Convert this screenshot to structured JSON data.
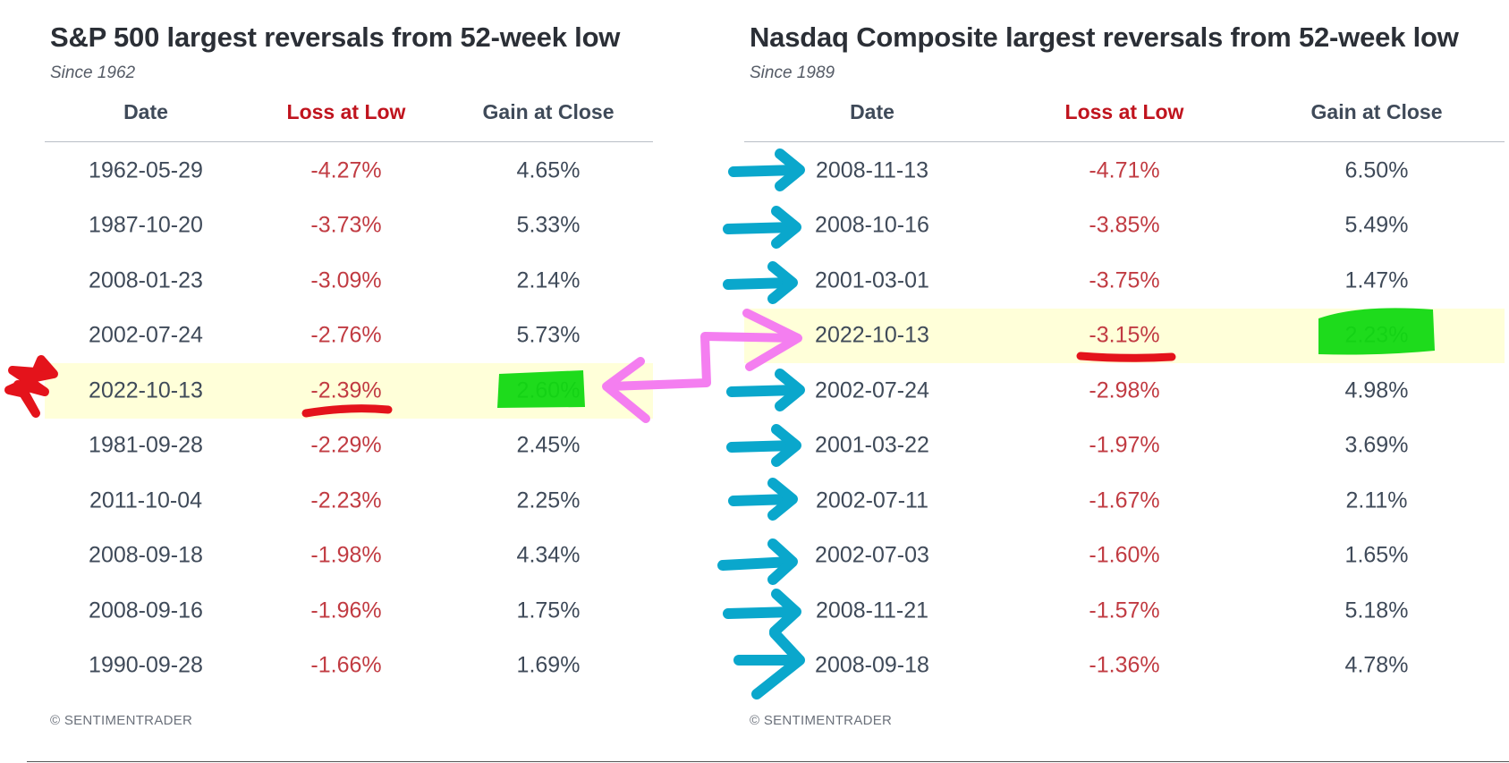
{
  "tables": [
    {
      "title": "S&P 500 largest reversals from 52-week low",
      "subtitle": "Since 1962",
      "columns": [
        "Date",
        "Loss at Low",
        "Gain at Close"
      ],
      "rows": [
        [
          "1962-05-29",
          "-4.27%",
          "4.65%"
        ],
        [
          "1987-10-20",
          "-3.73%",
          "5.33%"
        ],
        [
          "2008-01-23",
          "-3.09%",
          "2.14%"
        ],
        [
          "2002-07-24",
          "-2.76%",
          "5.73%"
        ],
        [
          "2022-10-13",
          "-2.39%",
          "2.60%"
        ],
        [
          "1981-09-28",
          "-2.29%",
          "2.45%"
        ],
        [
          "2011-10-04",
          "-2.23%",
          "2.25%"
        ],
        [
          "2008-09-18",
          "-1.98%",
          "4.34%"
        ],
        [
          "2008-09-16",
          "-1.96%",
          "1.75%"
        ],
        [
          "1990-09-28",
          "-1.66%",
          "1.69%"
        ]
      ],
      "highlighted_row": 4,
      "source": "© SENTIMENTRADER"
    },
    {
      "title": "Nasdaq Composite largest reversals from 52-week low",
      "subtitle": "Since 1989",
      "columns": [
        "Date",
        "Loss at Low",
        "Gain at Close"
      ],
      "rows": [
        [
          "2008-11-13",
          "-4.71%",
          "6.50%"
        ],
        [
          "2008-10-16",
          "-3.85%",
          "5.49%"
        ],
        [
          "2001-03-01",
          "-3.75%",
          "1.47%"
        ],
        [
          "2022-10-13",
          "-3.15%",
          "2.23%"
        ],
        [
          "2002-07-24",
          "-2.98%",
          "4.98%"
        ],
        [
          "2001-03-22",
          "-1.97%",
          "3.69%"
        ],
        [
          "2002-07-11",
          "-1.67%",
          "2.11%"
        ],
        [
          "2002-07-03",
          "-1.60%",
          "1.65%"
        ],
        [
          "2008-11-21",
          "-1.57%",
          "5.18%"
        ],
        [
          "2008-09-18",
          "-1.36%",
          "4.78%"
        ]
      ],
      "highlighted_row": 3,
      "source": "© SENTIMENTRADER"
    }
  ],
  "colors": {
    "loss_header": "#c0141e",
    "loss_value": "#c13b42",
    "row_highlight": "#ffffd9",
    "annotation_green": "#12d912",
    "annotation_red": "#e4131b",
    "annotation_blue": "#0aa7cc",
    "annotation_pink": "#f47ef0"
  }
}
